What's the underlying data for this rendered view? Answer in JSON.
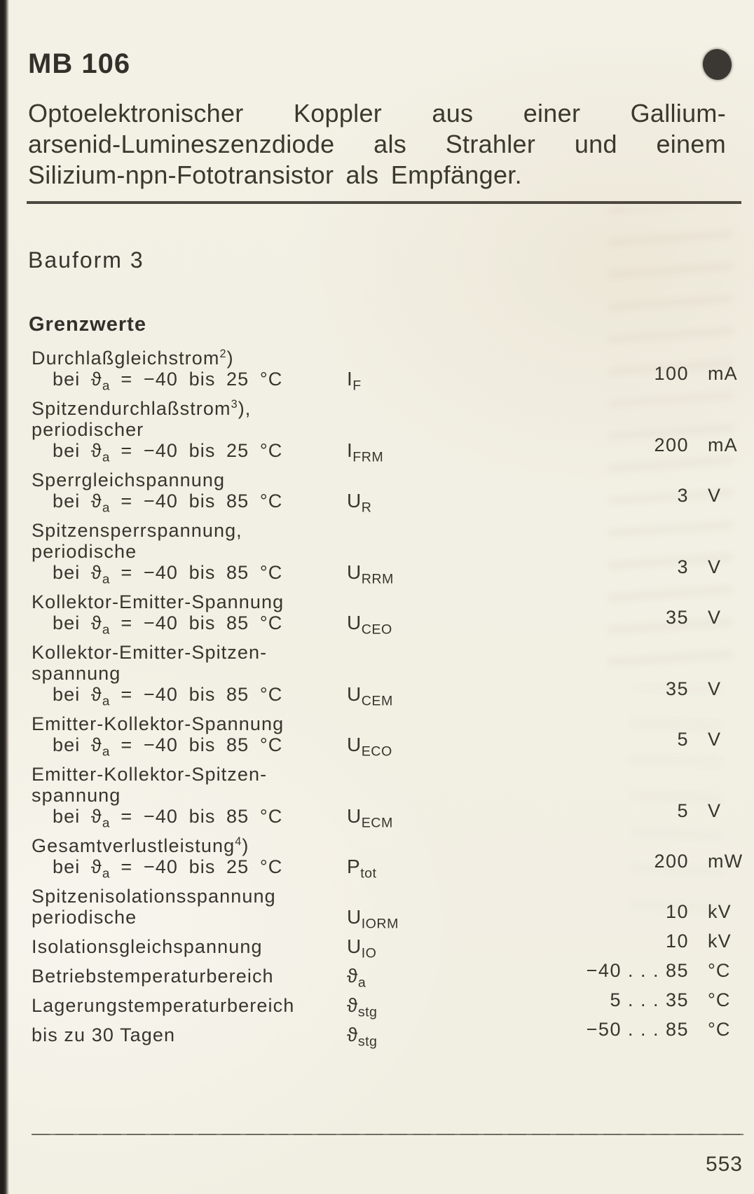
{
  "page": {
    "model": "MB 106",
    "intro_lines": [
      "Optoelektronischer Koppler aus einer Gallium-",
      "arsenid-Lumineszenzdiode als Strahler und einem",
      "Silizium-npn-Fototransistor als Empfänger."
    ],
    "bauform": "Bauform 3",
    "section_title": "Grenzwerte",
    "page_number": "553"
  },
  "colors": {
    "paper": "#f2efe4",
    "ink": "#38352e",
    "rule": "#3b3831",
    "registration_dot": "#3b3834"
  },
  "limits_table": {
    "rows": [
      {
        "label_lines": [
          {
            "text": "Durchlaßgleichstrom^2^)",
            "indent": false
          },
          {
            "text": "bei ϑ~a~ = −40 bis 25 °C",
            "indent": true
          }
        ],
        "symbol": "I~F~",
        "value": "100",
        "unit": "mA"
      },
      {
        "label_lines": [
          {
            "text": "Spitzendurchlaßstrom^3^),",
            "indent": false
          },
          {
            "text": "periodischer",
            "indent": false
          },
          {
            "text": "bei ϑ~a~ = −40 bis 25 °C",
            "indent": true
          }
        ],
        "symbol": "I~FRM~",
        "value": "200",
        "unit": "mA"
      },
      {
        "label_lines": [
          {
            "text": "Sperrgleichspannung",
            "indent": false
          },
          {
            "text": "bei ϑ~a~ = −40 bis 85 °C",
            "indent": true
          }
        ],
        "symbol": "U~R~",
        "value": "3",
        "unit": "V"
      },
      {
        "label_lines": [
          {
            "text": "Spitzensperrspannung,",
            "indent": false
          },
          {
            "text": "periodische",
            "indent": false
          },
          {
            "text": "bei ϑ~a~ = −40 bis 85 °C",
            "indent": true
          }
        ],
        "symbol": "U~RRM~",
        "value": "3",
        "unit": "V"
      },
      {
        "label_lines": [
          {
            "text": "Kollektor-Emitter-Spannung",
            "indent": false
          },
          {
            "text": "bei ϑ~a~ = −40 bis 85 °C",
            "indent": true
          }
        ],
        "symbol": "U~CEO~",
        "value": "35",
        "unit": "V"
      },
      {
        "label_lines": [
          {
            "text": "Kollektor-Emitter-Spitzen-",
            "indent": false
          },
          {
            "text": "spannung",
            "indent": false
          },
          {
            "text": "bei ϑ~a~ = −40 bis 85 °C",
            "indent": true
          }
        ],
        "symbol": "U~CEM~",
        "value": "35",
        "unit": "V"
      },
      {
        "label_lines": [
          {
            "text": "Emitter-Kollektor-Spannung",
            "indent": false
          },
          {
            "text": "bei ϑ~a~ = −40 bis 85 °C",
            "indent": true
          }
        ],
        "symbol": "U~ECO~",
        "value": "5",
        "unit": "V"
      },
      {
        "label_lines": [
          {
            "text": "Emitter-Kollektor-Spitzen-",
            "indent": false
          },
          {
            "text": "spannung",
            "indent": false
          },
          {
            "text": "bei ϑ~a~ = −40 bis 85 °C",
            "indent": true
          }
        ],
        "symbol": "U~ECM~",
        "value": "5",
        "unit": "V"
      },
      {
        "label_lines": [
          {
            "text": "Gesamtverlustleistung^4^)",
            "indent": false
          },
          {
            "text": "bei ϑ~a~ = −40 bis 25 °C",
            "indent": true
          }
        ],
        "symbol": "P~tot~",
        "value": "200",
        "unit": "mW"
      },
      {
        "label_lines": [
          {
            "text": "Spitzenisolationsspannung",
            "indent": false
          },
          {
            "text": "periodische",
            "indent": false
          }
        ],
        "symbol": "U~IORM~",
        "value": "10",
        "unit": "kV"
      },
      {
        "label_lines": [
          {
            "text": "Isolationsgleichspannung",
            "indent": false
          }
        ],
        "symbol": "U~IO~",
        "value": "10",
        "unit": "kV"
      },
      {
        "label_lines": [
          {
            "text": "Betriebstemperaturbereich",
            "indent": false
          }
        ],
        "symbol": "ϑ~a~",
        "value": "−40 . . . 85",
        "unit": "°C"
      },
      {
        "label_lines": [
          {
            "text": "Lagerungstemperaturbereich",
            "indent": false
          }
        ],
        "symbol": "ϑ~stg~",
        "value": "5 . . . 35",
        "unit": "°C"
      },
      {
        "label_lines": [
          {
            "text": "bis zu 30 Tagen",
            "indent": false
          }
        ],
        "symbol": "ϑ~stg~",
        "value": "−50 . . . 85",
        "unit": "°C"
      }
    ]
  }
}
